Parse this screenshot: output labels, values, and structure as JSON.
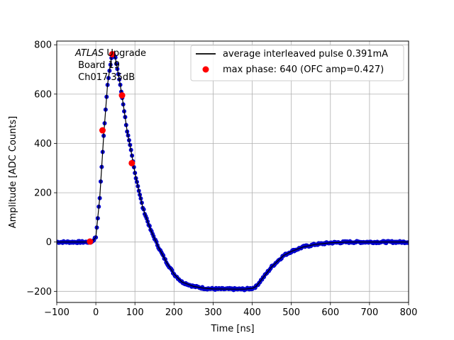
{
  "chart_data": {
    "type": "scatter",
    "title": "",
    "xlabel": "Time [ns]",
    "ylabel": "Amplitude [ADC Counts]",
    "xlim": [
      -100,
      800
    ],
    "ylim": [
      -245,
      815
    ],
    "xticks": [
      -100,
      0,
      100,
      200,
      300,
      400,
      500,
      600,
      700,
      800
    ],
    "yticks": [
      -200,
      0,
      200,
      400,
      600,
      800
    ],
    "xtick_labels": [
      "−100",
      "0",
      "100",
      "200",
      "300",
      "400",
      "500",
      "600",
      "700",
      "800"
    ],
    "ytick_labels": [
      "−200",
      "0",
      "200",
      "400",
      "600",
      "800"
    ],
    "grid": true,
    "legend_position": "top-right",
    "annotation": {
      "line1_italic": "ATLAS",
      "line1_rest": " Upgrade",
      "line2": " Board 19",
      "line3": " Ch017 35dB"
    },
    "series": [
      {
        "name": "average interleaved pulse 0.391mA",
        "kind": "line",
        "color": "#000000",
        "marker_color": "#0000cc",
        "x": [
          -100,
          -50,
          -20,
          -10,
          0,
          10,
          20,
          30,
          40,
          45,
          50,
          60,
          70,
          80,
          90,
          100,
          120,
          140,
          160,
          180,
          200,
          220,
          250,
          280,
          300,
          350,
          380,
          400,
          410,
          420,
          450,
          480,
          500,
          530,
          560,
          600,
          650,
          700,
          750,
          800
        ],
        "y": [
          0,
          0,
          0,
          1,
          20,
          180,
          430,
          640,
          750,
          762,
          745,
          660,
          560,
          450,
          370,
          280,
          140,
          50,
          -20,
          -80,
          -130,
          -162,
          -180,
          -188,
          -190,
          -191,
          -191,
          -188,
          -180,
          -160,
          -100,
          -55,
          -38,
          -20,
          -10,
          -3,
          0,
          0,
          0,
          0
        ]
      },
      {
        "name": "max phase: 640 (OFC amp=0.427)",
        "kind": "points",
        "color": "#ff0000",
        "x": [
          -15,
          17,
          42,
          67,
          92
        ],
        "y": [
          2,
          453,
          762,
          595,
          320
        ]
      }
    ]
  }
}
